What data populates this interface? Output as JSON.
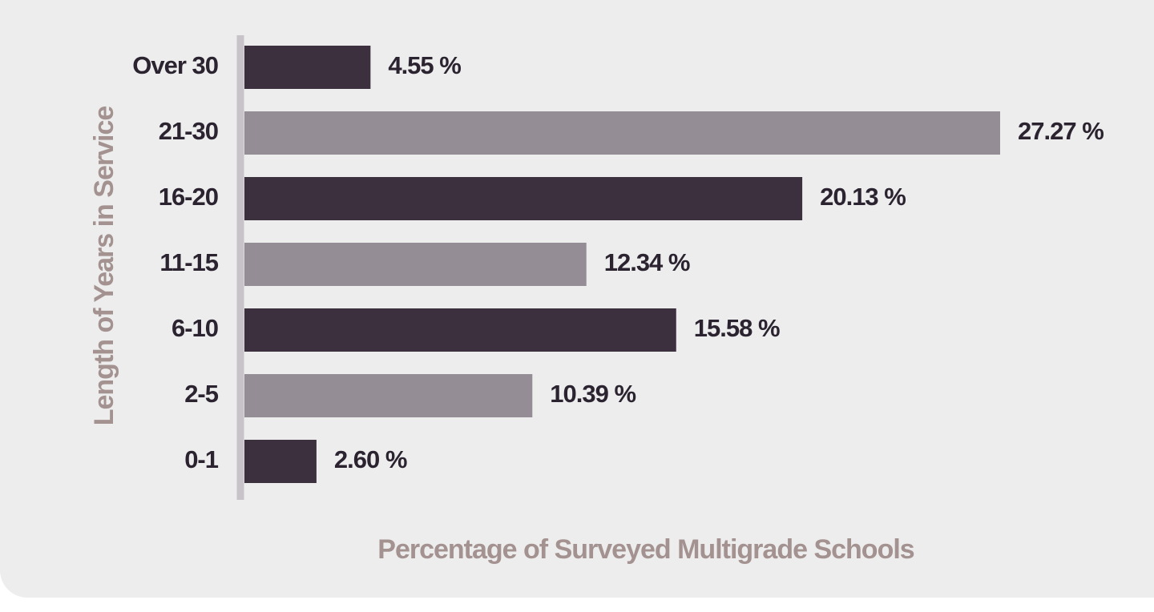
{
  "chart_data": {
    "type": "bar",
    "orientation": "horizontal",
    "categories": [
      "Over 30",
      "21-30",
      "16-20",
      "11-15",
      "6-10",
      "2-5",
      "0-1"
    ],
    "values": [
      4.55,
      27.27,
      20.13,
      12.34,
      15.58,
      10.39,
      2.6
    ],
    "value_labels": [
      "4.55 %",
      "27.27 %",
      "20.13 %",
      "12.34 %",
      "15.58 %",
      "10.39 %",
      "2.60 %"
    ],
    "title": "",
    "xlabel": "Percentage of Surveyed Multigrade Schools",
    "ylabel": "Length of Years in Service",
    "xlim": [
      0,
      27.27
    ],
    "grid": false,
    "colors": {
      "dark": "#3c303e",
      "light": "#958d96",
      "axis": "#c8c3c8",
      "axis_title": "#a39290",
      "panel": "#ededed"
    },
    "bar_colors": [
      "#3c303e",
      "#958d96",
      "#3c303e",
      "#958d96",
      "#3c303e",
      "#958d96",
      "#3c303e"
    ]
  }
}
